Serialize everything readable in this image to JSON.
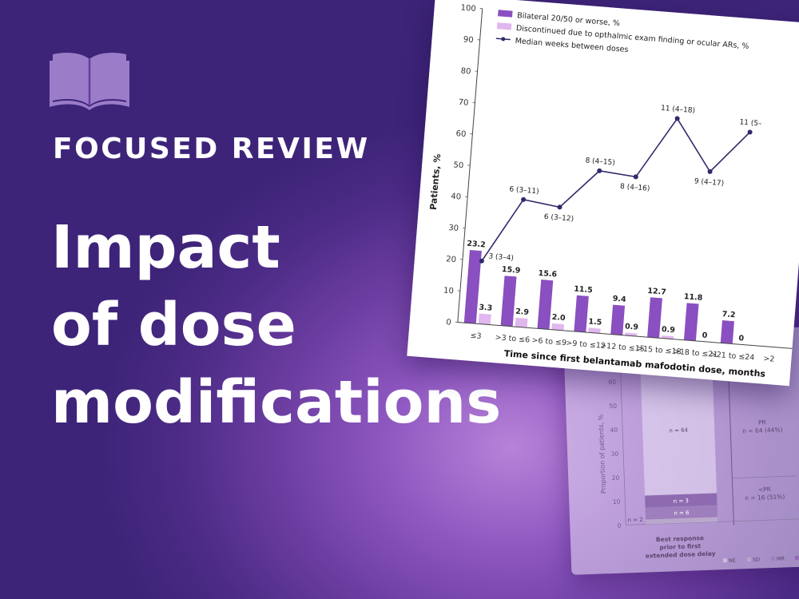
{
  "header": {
    "kicker": "FOCUSED REVIEW",
    "headline_lines": [
      "Impact",
      "of dose",
      "modifications"
    ]
  },
  "icons": {
    "header_icon": "open-book-icon"
  },
  "colors": {
    "bar_primary": "#8a4fc0",
    "bar_secondary": "#e0b7ee",
    "line": "#2e2a6b",
    "back_bar": "#9f7ebd"
  },
  "chart_data": [
    {
      "type": "bar+line",
      "title": "",
      "xlabel": "Time since first belantamab mafodotin dose, months",
      "ylabel": "Patients, %",
      "ylim": [
        0,
        100
      ],
      "yticks": [
        0,
        10,
        20,
        30,
        40,
        50,
        60,
        70,
        80,
        90,
        100
      ],
      "categories": [
        ">0 to ≤3",
        ">3 to ≤6",
        ">6 to ≤9",
        ">9 to ≤12",
        ">12 to ≤15",
        ">15 to ≤18",
        ">18 to ≤21",
        ">21 to ≤24",
        ">2"
      ],
      "category_labels": [
        "≤3",
        ">3 to ≤6",
        ">6 to ≤9",
        ">9 to ≤12",
        ">12 to ≤15",
        ">15 to ≤18",
        ">18 to ≤21",
        ">21 to ≤24",
        ">2"
      ],
      "legend": [
        "Bilateral 20/50 or worse, %",
        "Discontinued due to opthalmic exam finding or ocular ARs, %",
        "Median weeks between doses"
      ],
      "series": [
        {
          "name": "Bilateral 20/50 or worse, %",
          "type": "bar",
          "values": [
            23.2,
            15.9,
            15.6,
            11.5,
            9.4,
            12.7,
            11.8,
            7.2,
            null
          ],
          "labels": [
            "23.2",
            "15.9",
            "15.6",
            "11.5",
            "9.4",
            "12.7",
            "11.8",
            "7.2",
            ""
          ]
        },
        {
          "name": "Discontinued due to opthalmic exam finding or ocular ARs, %",
          "type": "bar",
          "values": [
            3.3,
            2.9,
            2.0,
            1.5,
            0.9,
            0.9,
            0,
            0,
            null
          ],
          "labels": [
            "3.3",
            "2.9",
            "2.0",
            "1.5",
            "0.9",
            "0.9",
            "0",
            "0",
            ""
          ]
        },
        {
          "name": "Median weeks between doses",
          "type": "line",
          "values": [
            20,
            40.5,
            39,
            51.5,
            50.5,
            70,
            54,
            67.5,
            null
          ],
          "labels": [
            "3 (3–4)",
            "6 (3–11)",
            "6 (3–12)",
            "8 (4–15)",
            "8 (4–16)",
            "11 (4–18)",
            "9 (4–17)",
            "11 (5–",
            ""
          ]
        }
      ]
    },
    {
      "type": "bar",
      "ylabel": "Proportion of patients, %",
      "yticks": [
        0,
        10,
        20,
        30,
        40,
        50,
        60
      ],
      "ylim": [
        0,
        70
      ],
      "category_label": "Best response prior to first extended dose delay",
      "segment_labels": [
        "n = 2",
        "n = 6",
        "n = 3",
        "n = 64"
      ],
      "segments": [
        {
          "label": "n = 2",
          "from": 0,
          "to": 2
        },
        {
          "label": "n = 6",
          "from": 2,
          "to": 7
        },
        {
          "label": "n = 3",
          "from": 7,
          "to": 12
        },
        {
          "label": "n = 64",
          "from": 12,
          "to": 70
        }
      ],
      "brackets": [
        {
          "label_lines": [
            "PR",
            "n = 64 (44%)"
          ]
        },
        {
          "label_lines": [
            "<PR",
            "n = 16 (51%)"
          ]
        }
      ],
      "legend": [
        "NE",
        "SD",
        "MR",
        "PR",
        "V"
      ]
    }
  ]
}
